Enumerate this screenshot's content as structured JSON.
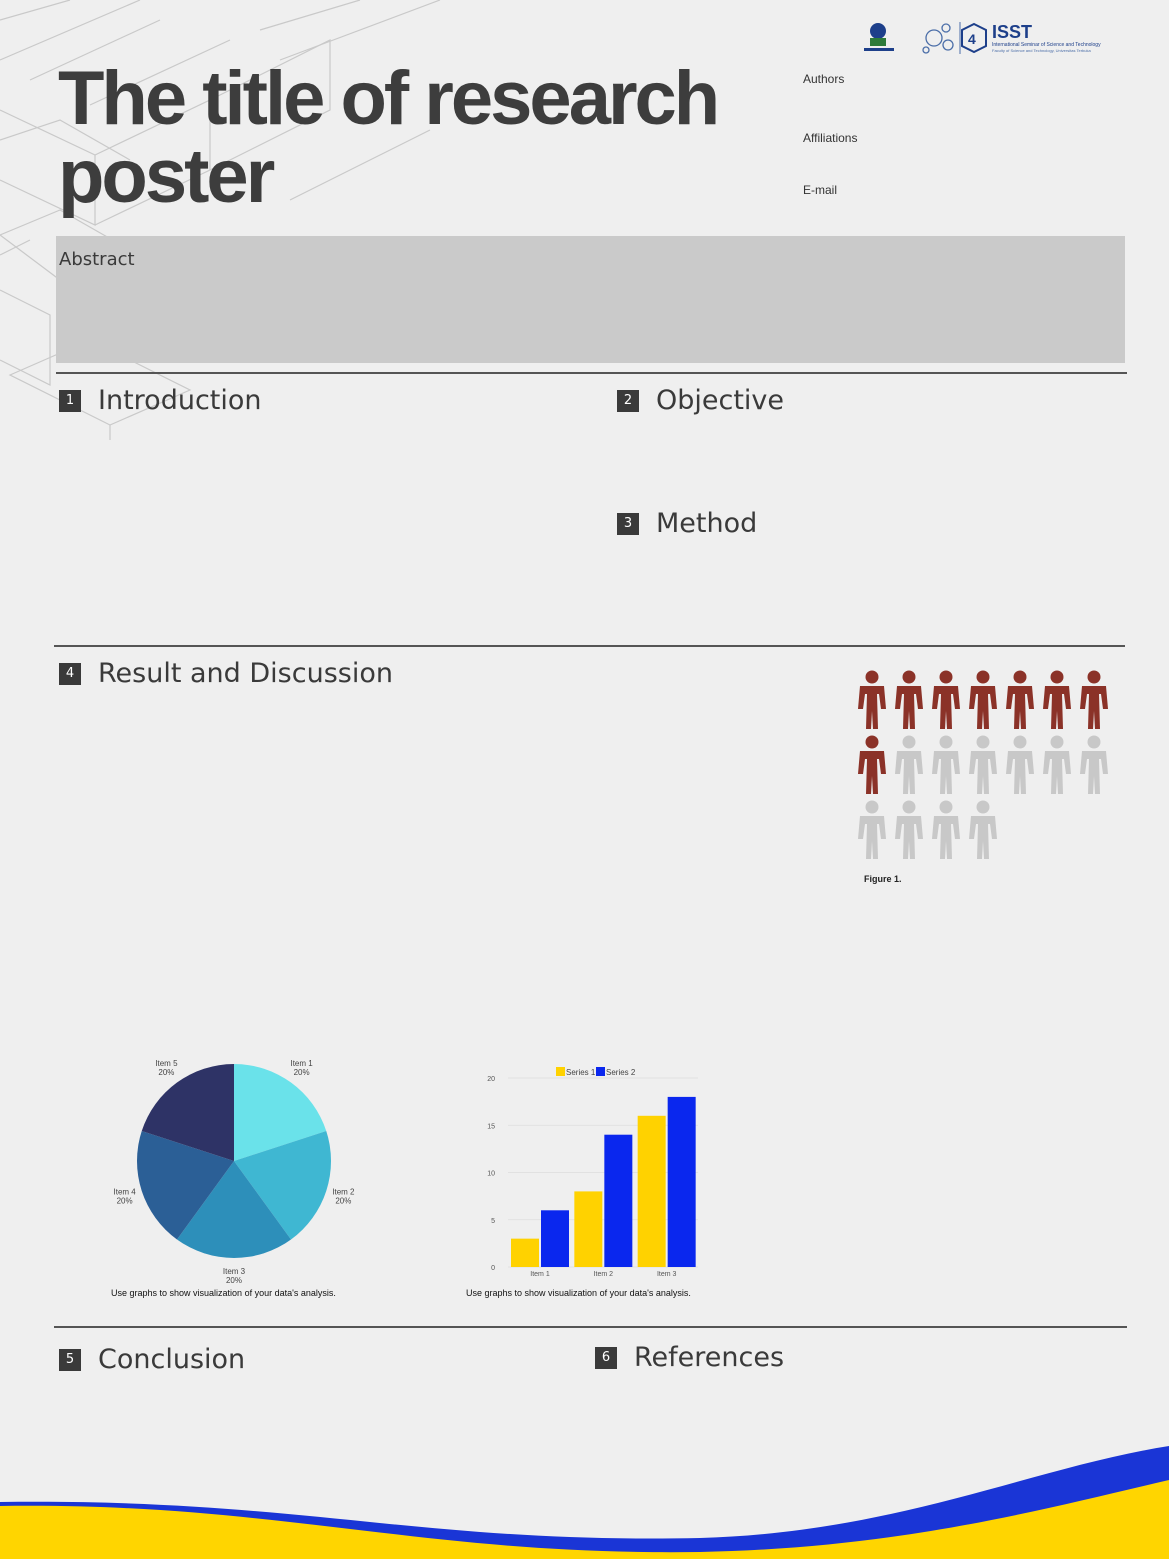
{
  "poster": {
    "title_line1": "The title of research",
    "title_line2": "poster",
    "authors_label": "Authors",
    "affiliations_label": "Affiliations",
    "email_label": "E-mail",
    "logo_isst": "ISST",
    "logo_isst_number": "4",
    "logo_isst_subtitle": "International Seminar of Science and Technology",
    "logo_isst_subtitle2": "Faculty of Science and Technology, Universitas Terbuka",
    "abstract_label": "Abstract"
  },
  "sections": [
    {
      "num": "1",
      "title": "Introduction"
    },
    {
      "num": "2",
      "title": "Objective"
    },
    {
      "num": "3",
      "title": "Method"
    },
    {
      "num": "4",
      "title": "Result and Discussion"
    },
    {
      "num": "5",
      "title": "Conclusion"
    },
    {
      "num": "6",
      "title": "References"
    }
  ],
  "figure1": {
    "label": "Figure 1.",
    "highlighted": 8,
    "total": 18,
    "highlight_color": "#8b3228",
    "muted_color": "#c8c8c8"
  },
  "captions": {
    "pie": "Use graphs to show visualization of your data's analysis.",
    "bar": "Use graphs to show visualization of your data's analysis."
  },
  "colors": {
    "accent_yellow": "#ffd500",
    "accent_blue": "#1133dd"
  },
  "chart_data": [
    {
      "type": "pie",
      "categories": [
        "Item 1",
        "Item 2",
        "Item 3",
        "Item 4",
        "Item 5"
      ],
      "values": [
        20,
        20,
        20,
        20,
        20
      ],
      "labels": [
        "20%",
        "20%",
        "20%",
        "20%",
        "20%"
      ],
      "colors": [
        "#6ae2ea",
        "#3fb7d2",
        "#2d8fba",
        "#2b5f96",
        "#2e3366"
      ]
    },
    {
      "type": "bar",
      "categories": [
        "Item 1",
        "Item 2",
        "Item 3"
      ],
      "series": [
        {
          "name": "Series 1",
          "values": [
            3,
            8,
            16
          ],
          "color": "#ffd200"
        },
        {
          "name": "Series 2",
          "values": [
            6,
            14,
            18
          ],
          "color": "#0a27ee"
        }
      ],
      "ylim": [
        0,
        20
      ],
      "yticks": [
        0,
        5,
        10,
        15,
        20
      ],
      "legend": "top"
    }
  ]
}
